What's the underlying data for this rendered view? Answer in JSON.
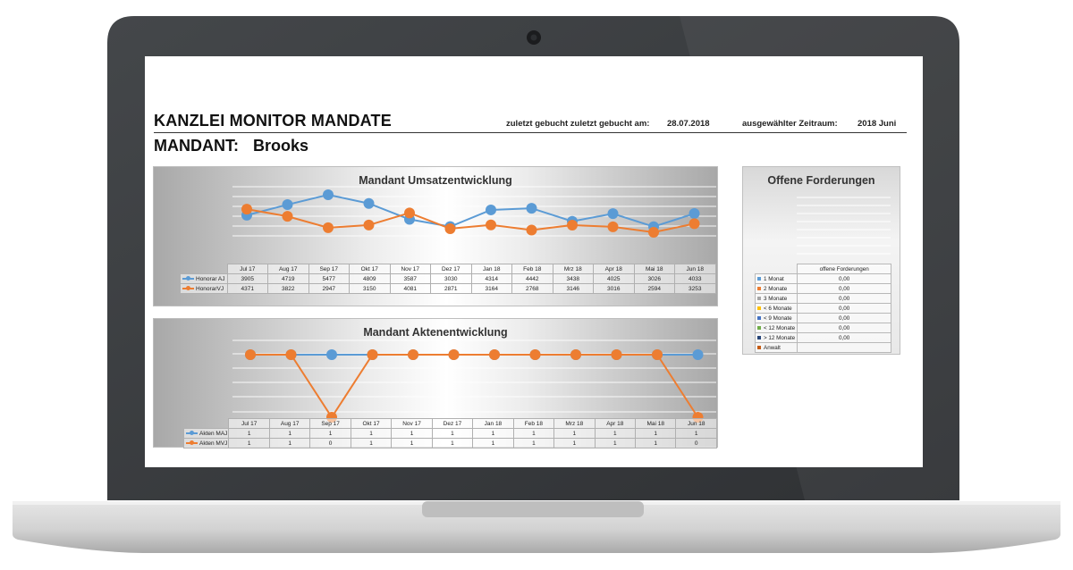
{
  "header": {
    "title": "KANZLEI MONITOR MANDATE",
    "zuletzt_label": "zuletzt gebucht  zuletzt gebucht am:",
    "zuletzt_value": "28.07.2018",
    "zeitraum_label": "ausgewählter Zeitraum:",
    "zeitraum_value": "2018 Juni",
    "mandant_label": "MANDANT:",
    "mandant_name": "Brooks"
  },
  "colors": {
    "blue": "#5b9bd5",
    "orange": "#ed7d31",
    "bezel": "#3a3d40"
  },
  "chart_data": [
    {
      "type": "line",
      "title": "Mandant Umsatzentwicklung",
      "categories": [
        "Jul 17",
        "Aug 17",
        "Sep 17",
        "Okt 17",
        "Nov 17",
        "Dez 17",
        "Jan 18",
        "Feb 18",
        "Mrz 18",
        "Apr 18",
        "Mai 18",
        "Jun 18"
      ],
      "series": [
        {
          "name": "Honorar AJ",
          "color": "#5b9bd5",
          "values": [
            3905,
            4719,
            5477,
            4809,
            3587,
            3030,
            4314,
            4442,
            3438,
            4025,
            3026,
            4033
          ]
        },
        {
          "name": "HonorarVJ",
          "color": "#ed7d31",
          "values": [
            4371,
            3822,
            2947,
            3150,
            4081,
            2871,
            3164,
            2768,
            3146,
            3016,
            2594,
            3253
          ]
        }
      ],
      "grid": true
    },
    {
      "type": "line",
      "title": "Mandant Aktenentwicklung",
      "categories": [
        "Jul 17",
        "Aug 17",
        "Sep 17",
        "Okt 17",
        "Nov 17",
        "Dez 17",
        "Jan 18",
        "Feb 18",
        "Mrz 18",
        "Apr 18",
        "Mai 18",
        "Jun 18"
      ],
      "series": [
        {
          "name": "Akten MAJ",
          "color": "#5b9bd5",
          "values": [
            1,
            1,
            1,
            1,
            1,
            1,
            1,
            1,
            1,
            1,
            1,
            1
          ]
        },
        {
          "name": "Akten MVJ",
          "color": "#ed7d31",
          "values": [
            1,
            1,
            0,
            1,
            1,
            1,
            1,
            1,
            1,
            1,
            1,
            0
          ]
        }
      ],
      "grid": true
    }
  ],
  "forderungen": {
    "title": "Offene Forderungen",
    "col_header": "offene Forderungen",
    "rows": [
      {
        "label": "1 Monat",
        "value": "0,00",
        "color": "#5b9bd5"
      },
      {
        "label": "2 Monate",
        "value": "0,00",
        "color": "#ed7d31"
      },
      {
        "label": "3 Monate",
        "value": "0,00",
        "color": "#a5a5a5"
      },
      {
        "label": "< 6 Monate",
        "value": "0,00",
        "color": "#ffc000"
      },
      {
        "label": "< 9 Monate",
        "value": "0,00",
        "color": "#4472c4"
      },
      {
        "label": "< 12 Monate",
        "value": "0,00",
        "color": "#70ad47"
      },
      {
        "label": "> 12 Monate",
        "value": "0,00",
        "color": "#264478"
      },
      {
        "label": "Anwalt",
        "value": "",
        "color": "#c55a11"
      }
    ]
  }
}
